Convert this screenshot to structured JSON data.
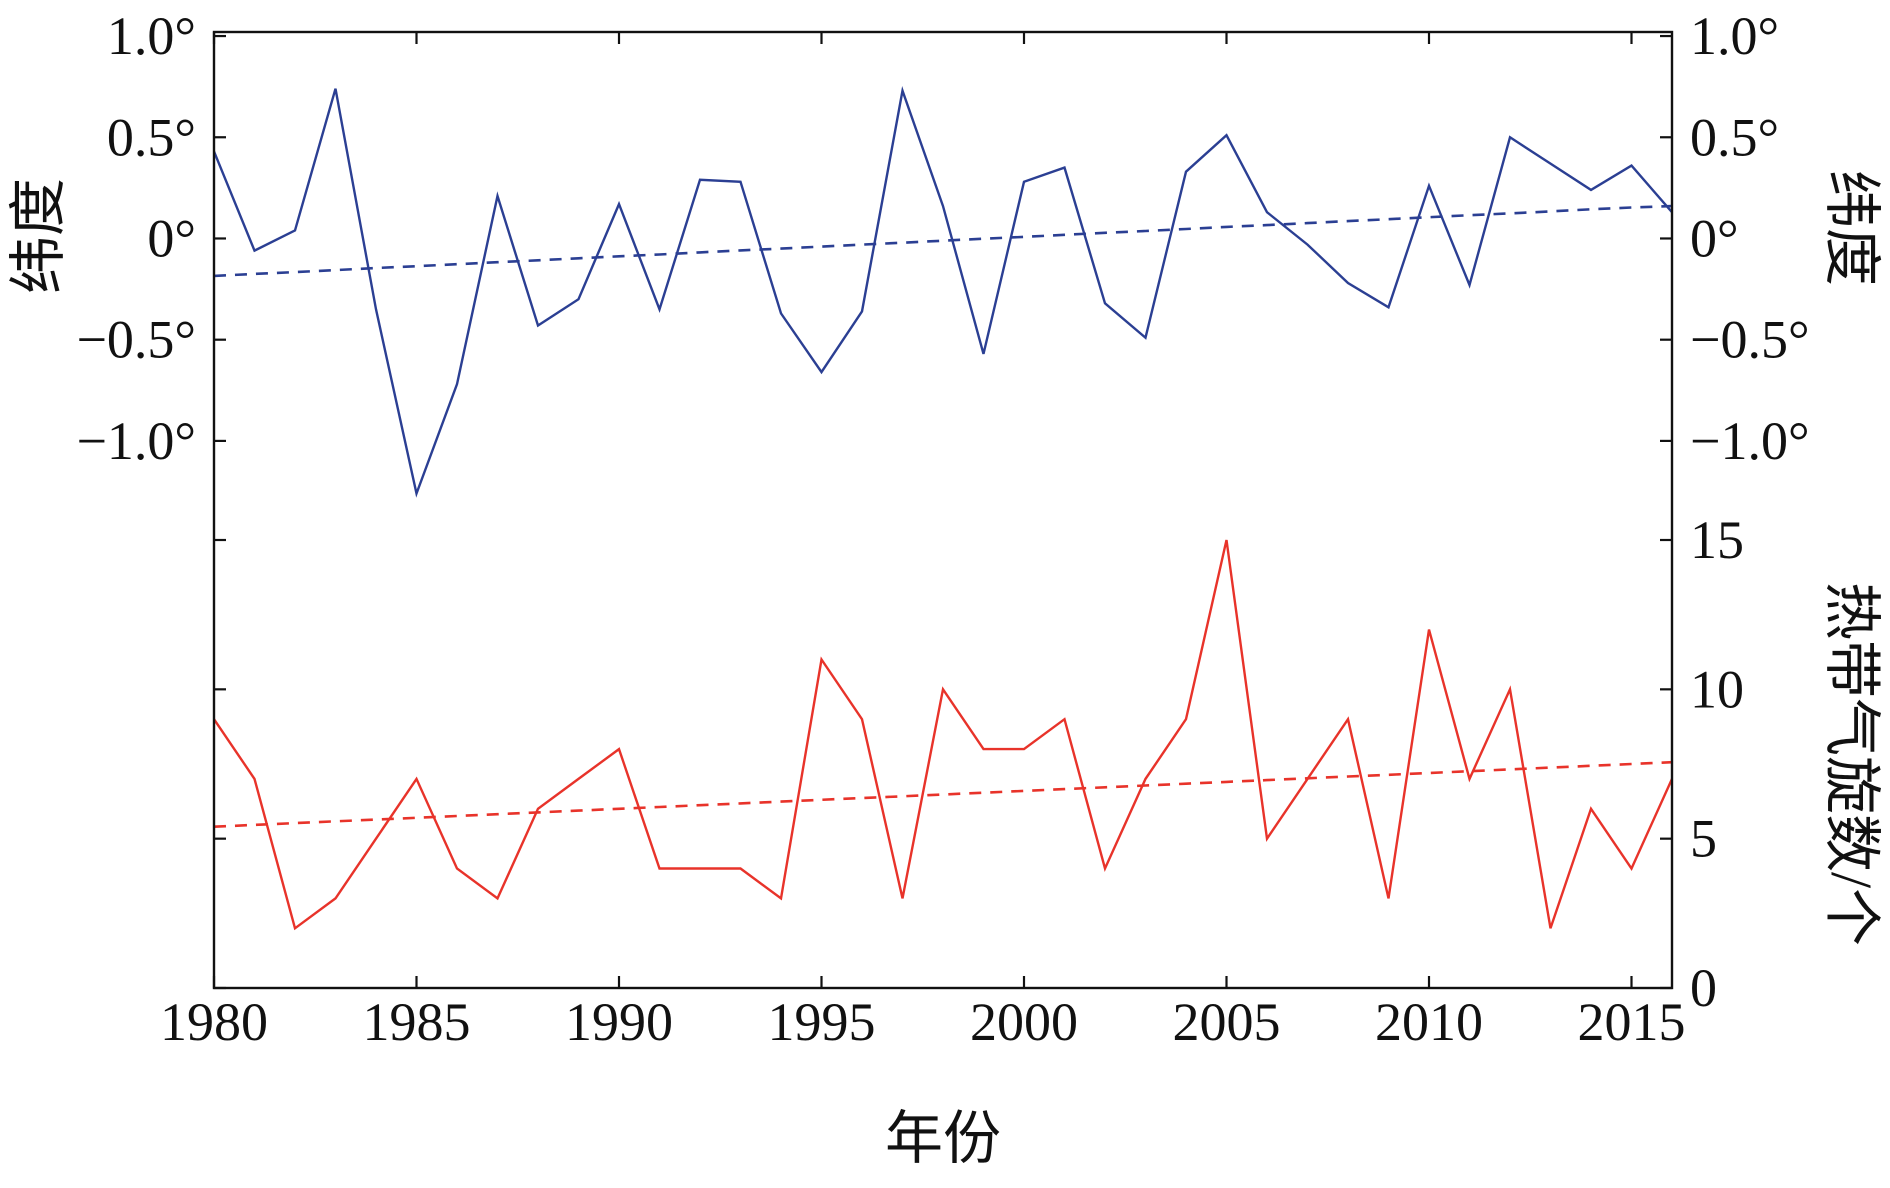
{
  "chart_data": {
    "type": "line",
    "x": [
      1980,
      1981,
      1982,
      1983,
      1984,
      1985,
      1986,
      1987,
      1988,
      1989,
      1990,
      1991,
      1992,
      1993,
      1994,
      1995,
      1996,
      1997,
      1998,
      1999,
      2000,
      2001,
      2002,
      2003,
      2004,
      2005,
      2006,
      2007,
      2008,
      2009,
      2010,
      2011,
      2012,
      2013,
      2014,
      2015,
      2016
    ],
    "xlabel": "年份",
    "xlim": [
      1980,
      2016
    ],
    "xticks": [
      1980,
      1985,
      1990,
      1995,
      2000,
      2005,
      2010,
      2015
    ],
    "xtick_labels": [
      "1980",
      "1985",
      "1990",
      "1995",
      "2000",
      "2005",
      "2010",
      "2015"
    ],
    "panels": [
      {
        "series": [
          {
            "color": "#2b3f93",
            "style": "solid",
            "values": [
              0.43,
              -0.06,
              0.04,
              0.74,
              -0.35,
              -1.26,
              -0.72,
              0.21,
              -0.43,
              -0.3,
              0.17,
              -0.35,
              0.29,
              0.28,
              -0.37,
              -0.66,
              -0.36,
              0.73,
              0.16,
              -0.57,
              0.28,
              0.35,
              -0.32,
              -0.49,
              0.33,
              0.51,
              0.13,
              -0.03,
              -0.22,
              -0.34,
              0.26,
              -0.23,
              0.5,
              0.37,
              0.24,
              0.36,
              0.13
            ]
          },
          {
            "color": "#2b3f93",
            "style": "dashed",
            "values": [
              -0.185,
              -0.175,
              -0.166,
              -0.156,
              -0.146,
              -0.137,
              -0.127,
              -0.117,
              -0.108,
              -0.098,
              -0.088,
              -0.079,
              -0.069,
              -0.059,
              -0.05,
              -0.04,
              -0.03,
              -0.021,
              -0.011,
              -0.001,
              0.008,
              0.018,
              0.028,
              0.037,
              0.047,
              0.057,
              0.066,
              0.076,
              0.086,
              0.095,
              0.105,
              0.115,
              0.124,
              0.134,
              0.144,
              0.153,
              0.16
            ]
          }
        ],
        "ylim": [
          -1.45,
          1.02
        ],
        "ylabel_left": "纬度",
        "ylabel_right": "纬度",
        "yticks": [
          1.0,
          0.5,
          0,
          -0.5,
          -1.0
        ],
        "ytick_labels_left": [
          "1.0°",
          "0.5°",
          "0°",
          "−0.5°",
          "−1.0°"
        ],
        "ytick_labels_right": [
          "1.0°",
          "0.5°",
          "0°",
          "−0.5°",
          "−1.0°"
        ]
      },
      {
        "series": [
          {
            "color": "#e8332a",
            "style": "solid",
            "values": [
              9,
              7,
              2,
              3,
              5,
              7,
              4,
              3,
              6,
              7,
              8,
              4,
              4,
              4,
              3,
              11,
              9,
              3,
              10,
              8,
              8,
              9,
              4,
              7,
              9,
              15,
              5,
              7,
              9,
              3,
              12,
              7,
              10,
              2,
              6,
              4,
              7
            ]
          },
          {
            "color": "#e8332a",
            "style": "dashed",
            "values": [
              5.4,
              5.46,
              5.52,
              5.58,
              5.64,
              5.7,
              5.76,
              5.82,
              5.88,
              5.94,
              6.0,
              6.06,
              6.12,
              6.18,
              6.24,
              6.3,
              6.36,
              6.42,
              6.48,
              6.54,
              6.6,
              6.66,
              6.72,
              6.78,
              6.84,
              6.9,
              6.96,
              7.02,
              7.08,
              7.14,
              7.2,
              7.26,
              7.32,
              7.38,
              7.44,
              7.5,
              7.56
            ]
          }
        ],
        "ylim": [
          0,
          15
        ],
        "ylabel_right": "热带气旋数/个",
        "yticks": [
          0,
          5,
          10,
          15
        ],
        "ytick_labels_right": [
          "0",
          "5",
          "10",
          "15"
        ]
      }
    ]
  }
}
